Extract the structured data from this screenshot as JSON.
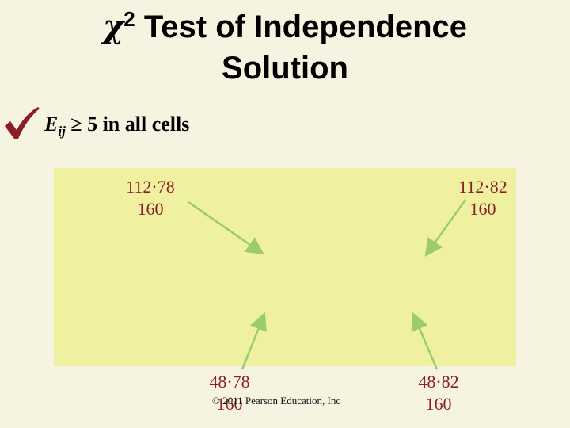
{
  "slide": {
    "title": {
      "symbol": "χ",
      "superscript": "2",
      "line1_text": " Test of Independence",
      "line2": "Solution"
    },
    "bullet": {
      "icon": "checkmark-icon",
      "variable": "E",
      "subscript": "ij",
      "condition": " ≥ 5 in all cells"
    },
    "cells": {
      "top_left": {
        "numerator": "112·78",
        "denominator": "160"
      },
      "top_right": {
        "numerator": "112·82",
        "denominator": "160"
      },
      "bottom_left": {
        "numerator": "48·78",
        "denominator": "160"
      },
      "bottom_right": {
        "numerator": "48·82",
        "denominator": "160"
      }
    },
    "footer": {
      "copyright": "© 2011 Pearson Education, Inc"
    },
    "colors": {
      "background": "#f6f3e0",
      "table_fill": "#eff0a0",
      "fraction_text": "#8a1e24",
      "arrow": "#9ccc6a",
      "check": "#8a1e24"
    }
  }
}
